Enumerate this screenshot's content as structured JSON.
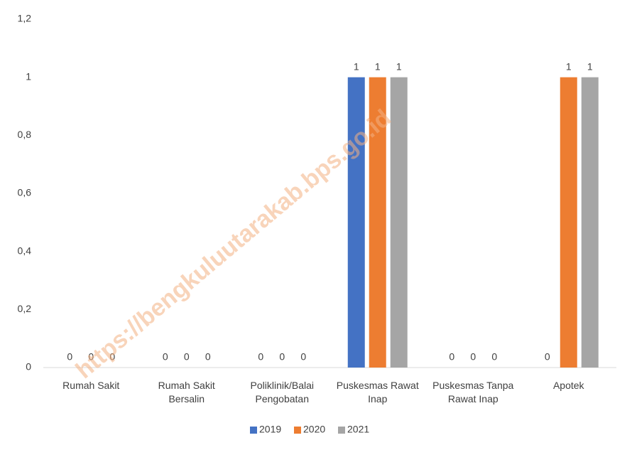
{
  "chart_data": {
    "type": "bar",
    "watermark": "https://bengkuluutarakab.bps.go.id",
    "categories": [
      "Rumah Sakit",
      "Rumah Sakit Bersalin",
      "Poliklinik/Balai Pengobatan",
      "Puskesmas Rawat Inap",
      "Puskesmas Tanpa Rawat Inap",
      "Apotek"
    ],
    "series": [
      {
        "name": "2019",
        "color": "#4472c4",
        "values": [
          0,
          0,
          0,
          1,
          0,
          0
        ]
      },
      {
        "name": "2020",
        "color": "#ed7d31",
        "values": [
          0,
          0,
          0,
          1,
          0,
          1
        ]
      },
      {
        "name": "2021",
        "color": "#a5a5a5",
        "values": [
          0,
          0,
          0,
          1,
          0,
          1
        ]
      }
    ],
    "ylim": [
      0,
      1.2
    ],
    "yticks": [
      0,
      {
        "value": 0.2,
        "label": "0,2"
      },
      {
        "value": 0.4,
        "label": "0,4"
      },
      {
        "value": 0.6,
        "label": "0,6"
      },
      {
        "value": 0.8,
        "label": "0,8"
      },
      1,
      {
        "value": 1.2,
        "label": "1,2"
      }
    ],
    "legend": "bottom"
  }
}
